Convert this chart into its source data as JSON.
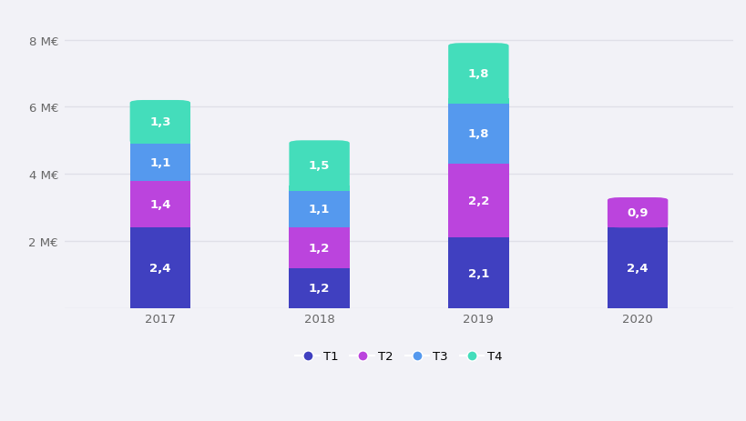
{
  "years": [
    "2017",
    "2018",
    "2019",
    "2020"
  ],
  "T1": [
    2.4,
    1.2,
    2.1,
    2.4
  ],
  "T2": [
    1.4,
    1.2,
    2.2,
    0.9
  ],
  "T3": [
    1.1,
    1.1,
    1.8,
    0.0
  ],
  "T4": [
    1.3,
    1.5,
    1.8,
    0.0
  ],
  "colors": {
    "T1": "#4040c0",
    "T2": "#bb44dd",
    "T3": "#5599ee",
    "T4": "#44ddbb"
  },
  "yticks": [
    0,
    2,
    4,
    6,
    8
  ],
  "ytick_labels": [
    "",
    "2 M€",
    "4 M€",
    "6 M€",
    "8 M€"
  ],
  "ylim": [
    0,
    8.8
  ],
  "background_color": "#f2f2f7",
  "bar_width": 0.38,
  "label_fontsize": 9.5,
  "tick_fontsize": 9.5,
  "legend_fontsize": 9.5,
  "grid_color": "#e0e0e8",
  "text_color": "#666666"
}
